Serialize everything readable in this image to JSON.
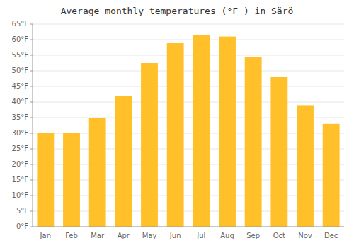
{
  "chart_data": {
    "type": "bar",
    "title": "Average monthly temperatures (°F ) in Särö",
    "categories": [
      "Jan",
      "Feb",
      "Mar",
      "Apr",
      "May",
      "Jun",
      "Jul",
      "Aug",
      "Sep",
      "Oct",
      "Nov",
      "Dec"
    ],
    "values": [
      30,
      30,
      35,
      42,
      52.5,
      59,
      61.5,
      61,
      54.5,
      48,
      39,
      33
    ],
    "color": "#FFC02A",
    "ylim": [
      0,
      65
    ],
    "yticks": [
      {
        "value": 0,
        "label": "0°F"
      },
      {
        "value": 5,
        "label": "5°F"
      },
      {
        "value": 10,
        "label": "10°F"
      },
      {
        "value": 15,
        "label": "15°F"
      },
      {
        "value": 20,
        "label": "20°F"
      },
      {
        "value": 25,
        "label": "25°F"
      },
      {
        "value": 30,
        "label": "30°F"
      },
      {
        "value": 35,
        "label": "35°F"
      },
      {
        "value": 40,
        "label": "40°F"
      },
      {
        "value": 45,
        "label": "45°F"
      },
      {
        "value": 50,
        "label": "50°F"
      },
      {
        "value": 55,
        "label": "55°F"
      },
      {
        "value": 60,
        "label": "60°F"
      },
      {
        "value": 65,
        "label": "65°F"
      }
    ],
    "grid": true
  }
}
